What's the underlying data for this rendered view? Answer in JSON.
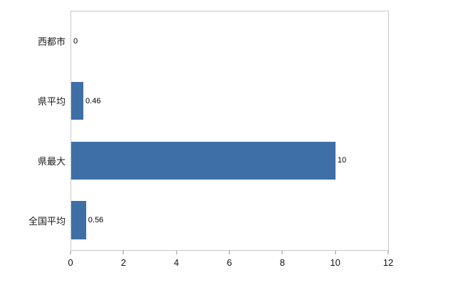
{
  "chart_data": {
    "type": "bar",
    "orientation": "horizontal",
    "title": "",
    "xlabel": "",
    "ylabel": "",
    "categories": [
      "西都市",
      "県平均",
      "県最大",
      "全国平均"
    ],
    "values": [
      0,
      0.46,
      10,
      0.56
    ],
    "value_labels": [
      "0",
      "0.46",
      "10",
      "0.56"
    ],
    "xlim": [
      0,
      12
    ],
    "x_ticks": [
      0,
      2,
      4,
      6,
      8,
      10,
      12
    ],
    "grid": false,
    "legend": false,
    "bar_color": "#3e6fa7",
    "plot_border_color": "#c6c6c6",
    "background_color": "#ffffff"
  }
}
